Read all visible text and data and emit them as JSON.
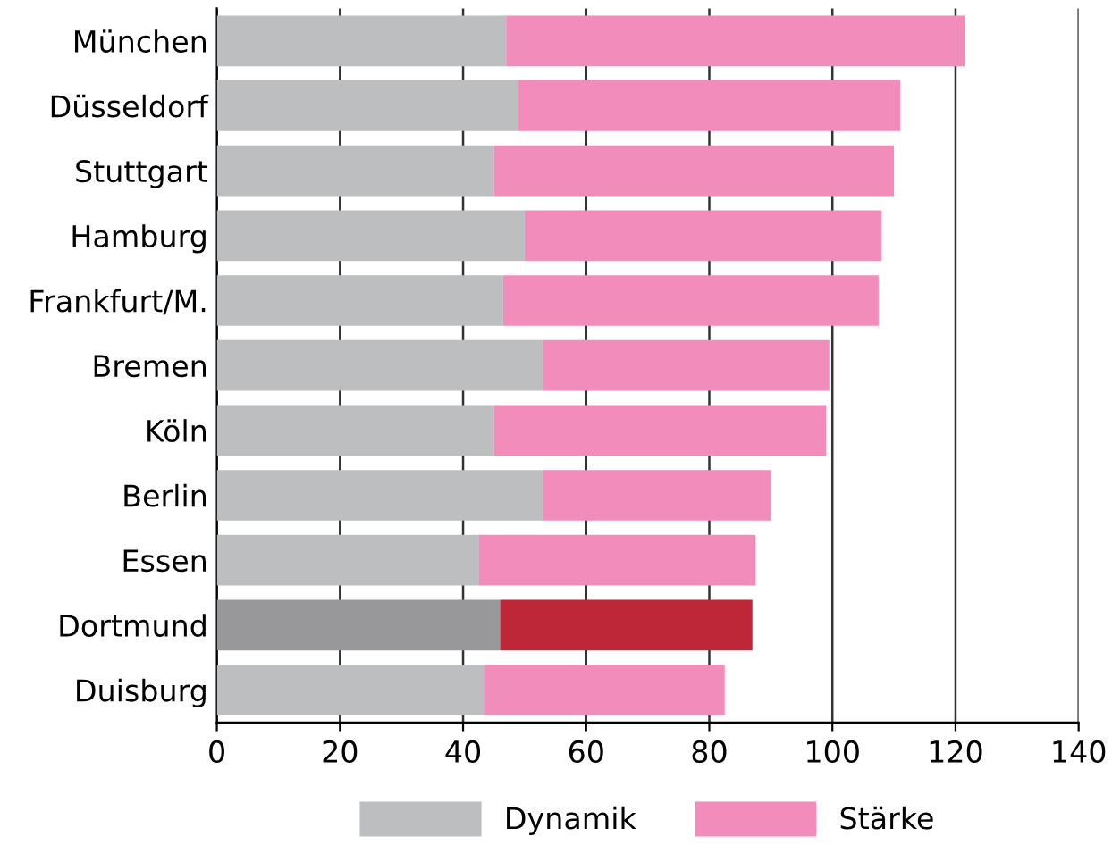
{
  "chart_data": {
    "type": "bar",
    "orientation": "horizontal",
    "stacked": true,
    "categories": [
      "München",
      "Düsseldorf",
      "Stuttgart",
      "Hamburg",
      "Frankfurt/M.",
      "Bremen",
      "Köln",
      "Berlin",
      "Essen",
      "Dortmund",
      "Duisburg"
    ],
    "series": [
      {
        "name": "Dynamik",
        "color": "#bcbec0",
        "colors": [
          "#bcbec0",
          "#bcbec0",
          "#bcbec0",
          "#bcbec0",
          "#bcbec0",
          "#bcbec0",
          "#bcbec0",
          "#bcbec0",
          "#bcbec0",
          "#98989b",
          "#bcbec0"
        ],
        "values": [
          47,
          49,
          45,
          50,
          46.5,
          53,
          45,
          53,
          42.5,
          46,
          43.5
        ]
      },
      {
        "name": "Stärke",
        "color": "#f28cba",
        "colors": [
          "#f28cba",
          "#f28cba",
          "#f28cba",
          "#f28cba",
          "#f28cba",
          "#f28cba",
          "#f28cba",
          "#f28cba",
          "#f28cba",
          "#bd2738",
          "#f28cba"
        ],
        "values": [
          74.5,
          62,
          65,
          58,
          61,
          46.5,
          54,
          37,
          45,
          41,
          39
        ]
      }
    ],
    "xlim": [
      0,
      140
    ],
    "xticks": [
      0,
      20,
      40,
      60,
      80,
      100,
      120,
      140
    ],
    "grid": "x",
    "legend": "bottom"
  }
}
